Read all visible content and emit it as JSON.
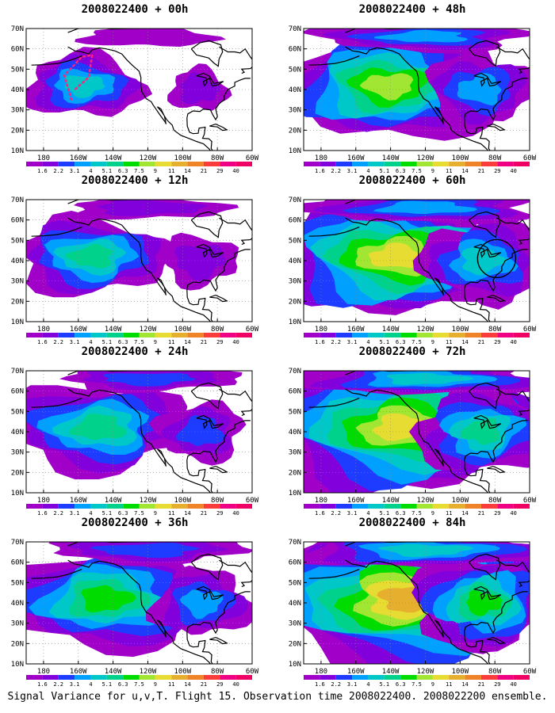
{
  "panels": [
    {
      "title": "2008022400 + 00h",
      "forecast_hour": 0,
      "intensity": 0.2,
      "show_flight_track": true,
      "show_circle": false
    },
    {
      "title": "2008022400 + 12h",
      "forecast_hour": 12,
      "intensity": 0.32,
      "show_flight_track": false,
      "show_circle": false
    },
    {
      "title": "2008022400 + 24h",
      "forecast_hour": 24,
      "intensity": 0.42,
      "show_flight_track": false,
      "show_circle": false
    },
    {
      "title": "2008022400 + 36h",
      "forecast_hour": 36,
      "intensity": 0.52,
      "show_flight_track": false,
      "show_circle": false
    },
    {
      "title": "2008022400 + 48h",
      "forecast_hour": 48,
      "intensity": 0.6,
      "show_flight_track": false,
      "show_circle": false
    },
    {
      "title": "2008022400 + 60h",
      "forecast_hour": 60,
      "intensity": 0.7,
      "show_flight_track": false,
      "show_circle": true
    },
    {
      "title": "2008022400 + 72h",
      "forecast_hour": 72,
      "intensity": 0.78,
      "show_flight_track": false,
      "show_circle": false
    },
    {
      "title": "2008022400 + 84h",
      "forecast_hour": 84,
      "intensity": 0.86,
      "show_flight_track": false,
      "show_circle": false
    }
  ],
  "lat_labels": [
    "70N",
    "60N",
    "50N",
    "40N",
    "30N",
    "20N",
    "10N"
  ],
  "lon_labels": [
    "180",
    "160W",
    "140W",
    "120W",
    "100W",
    "80W",
    "60W"
  ],
  "colorbar": {
    "labels": [
      "1.6",
      "2.2",
      "3.1",
      "4",
      "5.1",
      "6.3",
      "7.5",
      "9",
      "11",
      "14",
      "21",
      "29",
      "40"
    ],
    "colors": [
      "#a000c8",
      "#8200dc",
      "#1e3cff",
      "#00a0ff",
      "#00c8c8",
      "#00d28c",
      "#00dc00",
      "#a0e632",
      "#e6dc32",
      "#e6af2d",
      "#f08228",
      "#fa3c3c",
      "#f00082"
    ]
  },
  "caption": "Signal Variance for u,v,T. Flight 15. Observation time 2008022400. 2008022200 ensemble."
}
